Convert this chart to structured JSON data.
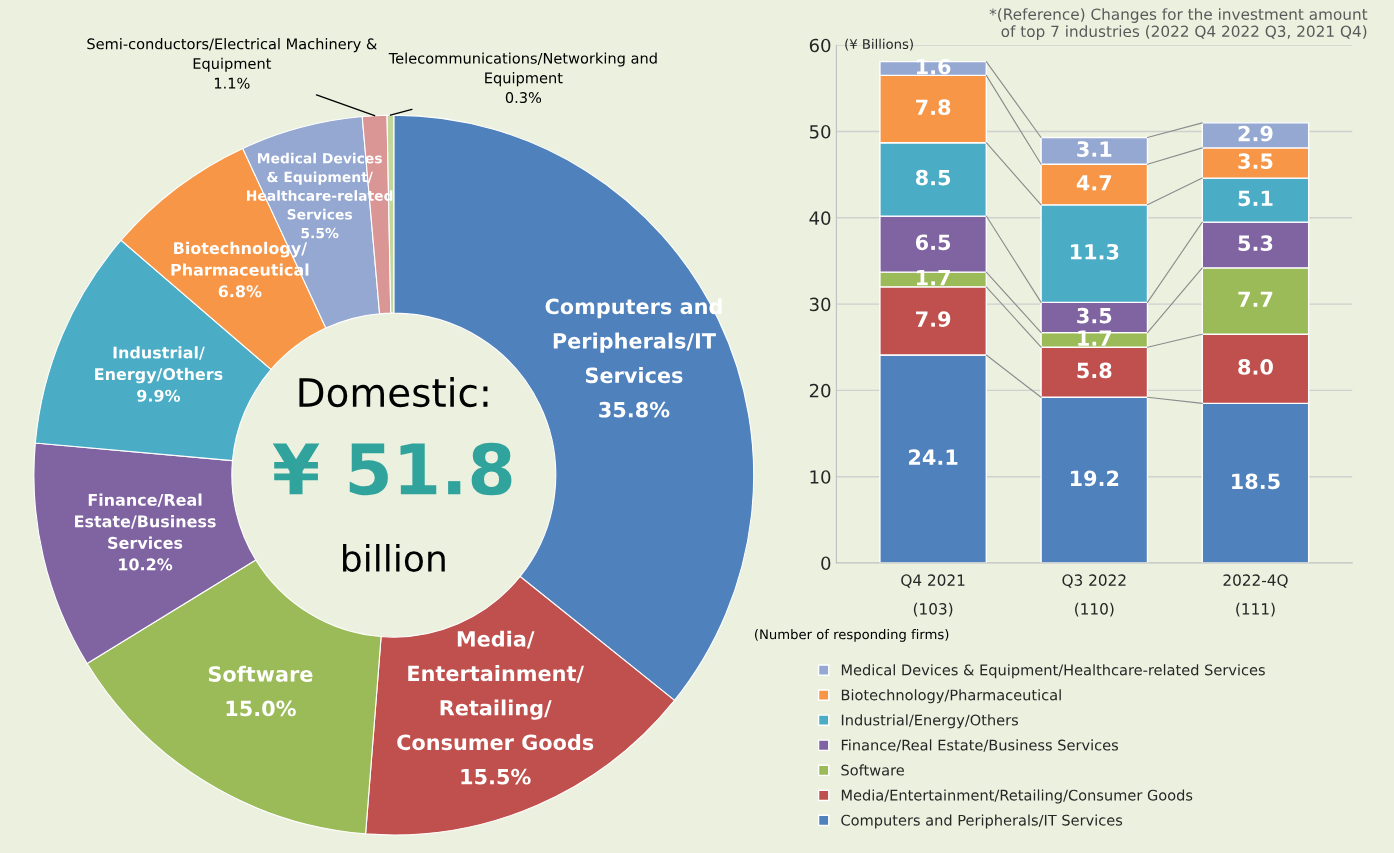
{
  "chart_data": [
    {
      "type": "donut",
      "categories": [
        "Computers and Peripherals/IT Services",
        "Media/Entertainment/Retailing/Consumer Goods",
        "Software",
        "Finance/Real Estate/Business Services",
        "Industrial/Energy/Others",
        "Biotechnology/Pharmaceutical",
        "Medical Devices & Equipment/Healthcare-related Services",
        "Semi-conductors/Electrical Machinery & Equipment",
        "Telecommunications/Networking and Equipment"
      ],
      "values": [
        35.8,
        15.5,
        15.0,
        10.2,
        9.9,
        6.8,
        5.5,
        1.1,
        0.3
      ],
      "value_labels": [
        "35.8%",
        "15.5%",
        "15.0%",
        "10.2%",
        "9.9%",
        "6.8%",
        "5.5%",
        "1.1%",
        "0.3%"
      ],
      "colors": [
        "#4f81bd",
        "#c0504d",
        "#9bbb59",
        "#8064a2",
        "#4bacc6",
        "#f79646",
        "#95a8d2",
        "#d99694",
        "#c3d69b"
      ],
      "annotations": [
        "Domestic:",
        "¥ 51.8",
        "billion"
      ],
      "legend": false
    },
    {
      "type": "bar",
      "stacked": true,
      "categories": [
        "Q4 2021\n(103)",
        "Q3 2022\n(110)",
        "2022-4Q\n(111)"
      ],
      "series": [
        {
          "name": "Computers and Peripherals/IT Services",
          "color": "#4f81bd",
          "values": [
            24.1,
            19.2,
            18.5
          ],
          "value_labels": [
            "24.1",
            "19.2",
            "18.5"
          ]
        },
        {
          "name": "Media/Entertainment/Retailing/Consumer Goods",
          "color": "#c0504d",
          "values": [
            7.9,
            5.8,
            8.0
          ],
          "value_labels": [
            "7.9",
            "5.8",
            "8.0"
          ]
        },
        {
          "name": "Software",
          "color": "#9bbb59",
          "values": [
            1.7,
            1.7,
            7.7
          ],
          "value_labels": [
            "1.7",
            "1.7",
            "7.7"
          ]
        },
        {
          "name": "Finance/Real Estate/Business Services",
          "color": "#8064a2",
          "values": [
            6.5,
            3.5,
            5.3
          ],
          "value_labels": [
            "6.5",
            "3.5",
            "5.3"
          ]
        },
        {
          "name": "Industrial/Energy/Others",
          "color": "#4bacc6",
          "values": [
            8.5,
            11.3,
            5.1
          ],
          "value_labels": [
            "8.5",
            "11.3",
            "5.1"
          ]
        },
        {
          "name": "Biotechnology/Pharmaceutical",
          "color": "#f79646",
          "values": [
            7.8,
            4.7,
            3.5
          ],
          "value_labels": [
            "7.8",
            "4.7",
            "3.5"
          ]
        },
        {
          "name": "Medical Devices & Equipment/Healthcare-related Services",
          "color": "#95a8d2",
          "values": [
            1.6,
            3.1,
            2.9
          ],
          "value_labels": [
            "1.6",
            "3.1",
            "2.9"
          ]
        }
      ],
      "ylabel": "(¥ Billions)",
      "ylim": [
        0,
        60
      ],
      "yticks": [
        0,
        10,
        20,
        30,
        40,
        50,
        60
      ],
      "grid": "y",
      "legend": "bottom",
      "annotations": [
        "*(Reference) Changes for the investment amount\n  of top 7 industries (2022 Q4 2022 Q3, 2021 Q4)",
        "(Number of responding firms)"
      ]
    }
  ]
}
